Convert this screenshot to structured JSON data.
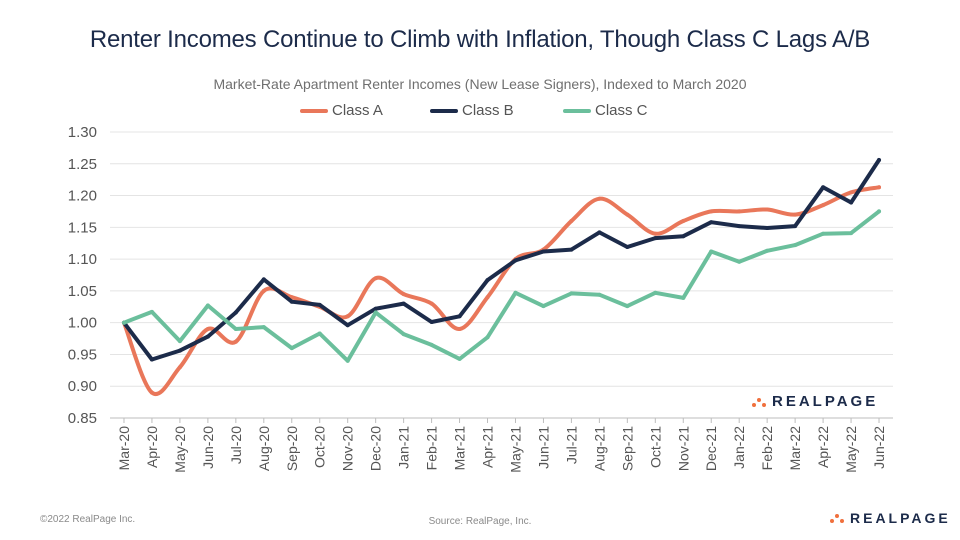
{
  "header": {
    "title": "Renter Incomes Continue to Climb with Inflation, Though Class C Lags A/B",
    "subtitle": "Market-Rate Apartment Renter Incomes (New Lease Signers), Indexed to March 2020"
  },
  "footer": {
    "copyright": "©2022 RealPage Inc.",
    "source": "Source: RealPage, Inc."
  },
  "brand": {
    "logo_text": "REALPAGE",
    "accent": "#f0703d",
    "text_color": "#1c2b4a"
  },
  "chart_data": {
    "type": "line",
    "title": "Renter Incomes Continue to Climb with Inflation, Though Class C Lags A/B",
    "subtitle": "Market-Rate Apartment Renter Incomes (New Lease Signers), Indexed to March 2020",
    "xlabel": "",
    "ylabel": "",
    "ylim": [
      0.85,
      1.3
    ],
    "yticks": [
      "0.85",
      "0.90",
      "0.95",
      "1.00",
      "1.05",
      "1.10",
      "1.15",
      "1.20",
      "1.25",
      "1.30"
    ],
    "grid": true,
    "legend_position": "top-center",
    "categories": [
      "Mar-20",
      "Apr-20",
      "May-20",
      "Jun-20",
      "Jul-20",
      "Aug-20",
      "Sep-20",
      "Oct-20",
      "Nov-20",
      "Dec-20",
      "Jan-21",
      "Feb-21",
      "Mar-21",
      "Apr-21",
      "May-21",
      "Jun-21",
      "Jul-21",
      "Aug-21",
      "Sep-21",
      "Oct-21",
      "Nov-21",
      "Dec-21",
      "Jan-22",
      "Feb-22",
      "Mar-22",
      "Apr-22",
      "May-22",
      "Jun-22"
    ],
    "series": [
      {
        "name": "Class A",
        "color": "#e9775a",
        "smooth": true,
        "values": [
          1.0,
          0.89,
          0.93,
          0.99,
          0.97,
          1.05,
          1.04,
          1.025,
          1.01,
          1.07,
          1.045,
          1.03,
          0.99,
          1.04,
          1.1,
          1.115,
          1.16,
          1.195,
          1.17,
          1.14,
          1.16,
          1.175,
          1.175,
          1.178,
          1.17,
          1.185,
          1.205,
          1.213
        ]
      },
      {
        "name": "Class B",
        "color": "#1c2b4a",
        "smooth": false,
        "values": [
          1.0,
          0.942,
          0.956,
          0.978,
          1.016,
          1.068,
          1.033,
          1.028,
          0.996,
          1.022,
          1.03,
          1.001,
          1.01,
          1.067,
          1.098,
          1.112,
          1.115,
          1.142,
          1.119,
          1.133,
          1.136,
          1.158,
          1.152,
          1.149,
          1.152,
          1.213,
          1.189,
          1.256
        ]
      },
      {
        "name": "Class C",
        "color": "#6bbf9c",
        "smooth": false,
        "values": [
          1.0,
          1.017,
          0.971,
          1.027,
          0.99,
          0.993,
          0.96,
          0.983,
          0.94,
          1.016,
          0.982,
          0.965,
          0.943,
          0.977,
          1.047,
          1.026,
          1.046,
          1.044,
          1.026,
          1.047,
          1.039,
          1.112,
          1.096,
          1.113,
          1.122,
          1.14,
          1.141,
          1.175
        ]
      }
    ]
  }
}
